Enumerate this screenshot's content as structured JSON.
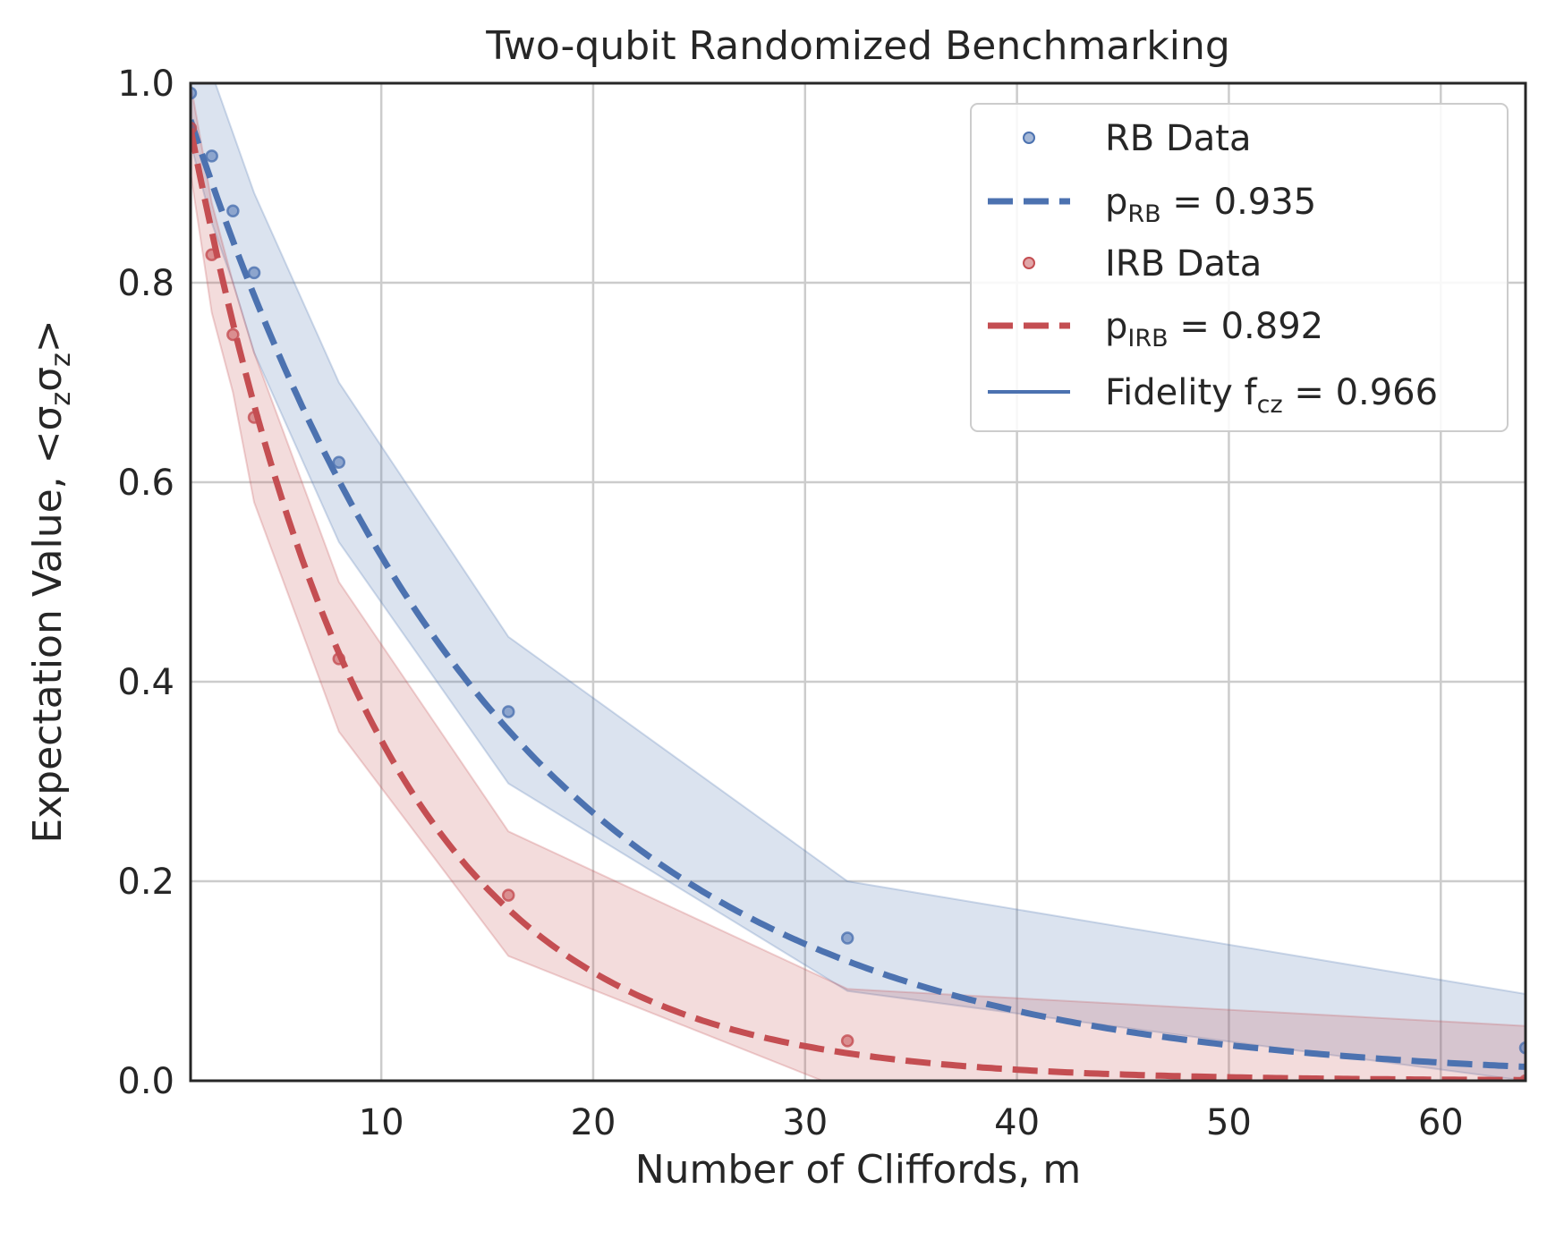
{
  "chart_data": {
    "type": "line",
    "title": "Two-qubit Randomized Benchmarking",
    "xlabel": "Number of Cliffords, m",
    "ylabel": "Expectation Value, <σ_zσ_z>",
    "ylabel_parts": {
      "prefix": "Expectation Value, <σ",
      "sub1": "z",
      "mid": "σ",
      "sub2": "z",
      "suffix": ">"
    },
    "xlim": [
      1,
      64
    ],
    "ylim": [
      0.0,
      1.0
    ],
    "xticks": [
      10,
      20,
      30,
      40,
      50,
      60
    ],
    "xtick_labels": [
      "10",
      "20",
      "30",
      "40",
      "50",
      "60"
    ],
    "yticks": [
      0.0,
      0.2,
      0.4,
      0.6,
      0.8,
      1.0
    ],
    "ytick_labels": [
      "0.0",
      "0.2",
      "0.4",
      "0.6",
      "0.8",
      "1.0"
    ],
    "grid": true,
    "legend_position": "top-right",
    "series": [
      {
        "name": "RB Data",
        "kind": "scatter",
        "color": "#4c72b0",
        "x": [
          1,
          2,
          3,
          4,
          8,
          16,
          32,
          64
        ],
        "y": [
          0.99,
          0.927,
          0.872,
          0.81,
          0.62,
          0.37,
          0.143,
          0.033
        ],
        "band_upper": [
          1.04,
          1.01,
          0.95,
          0.89,
          0.7,
          0.445,
          0.2,
          0.087
        ],
        "band_lower": [
          0.94,
          0.86,
          0.8,
          0.73,
          0.54,
          0.298,
          0.09,
          0.0
        ]
      },
      {
        "name": "p_RB = 0.935",
        "label_main": "p",
        "label_sub": "RB",
        "label_rest": " = 0.935",
        "kind": "fit",
        "color": "#4c72b0",
        "dash": true,
        "amplitude": 1.03,
        "p": 0.935
      },
      {
        "name": "IRB Data",
        "kind": "scatter",
        "color": "#c44e52",
        "x": [
          1,
          2,
          3,
          4,
          8,
          16,
          32,
          64
        ],
        "y": [
          0.955,
          0.828,
          0.748,
          0.665,
          0.423,
          0.186,
          0.04,
          0.0
        ],
        "band_upper": [
          1.0,
          0.88,
          0.8,
          0.73,
          0.5,
          0.25,
          0.092,
          0.055
        ],
        "band_lower": [
          0.91,
          0.77,
          0.69,
          0.58,
          0.35,
          0.125,
          -0.01,
          -0.01
        ]
      },
      {
        "name": "p_IRB = 0.892",
        "label_main": "p",
        "label_sub": "IRB",
        "label_rest": " = 0.892",
        "kind": "fit",
        "color": "#c44e52",
        "dash": true,
        "amplitude": 1.07,
        "p": 0.892
      },
      {
        "name": "Fidelity f_cz = 0.966",
        "label_main": "Fidelity f",
        "label_sub": "cz",
        "label_rest": " = 0.966",
        "kind": "legend-line",
        "color": "#4c72b0"
      }
    ]
  }
}
